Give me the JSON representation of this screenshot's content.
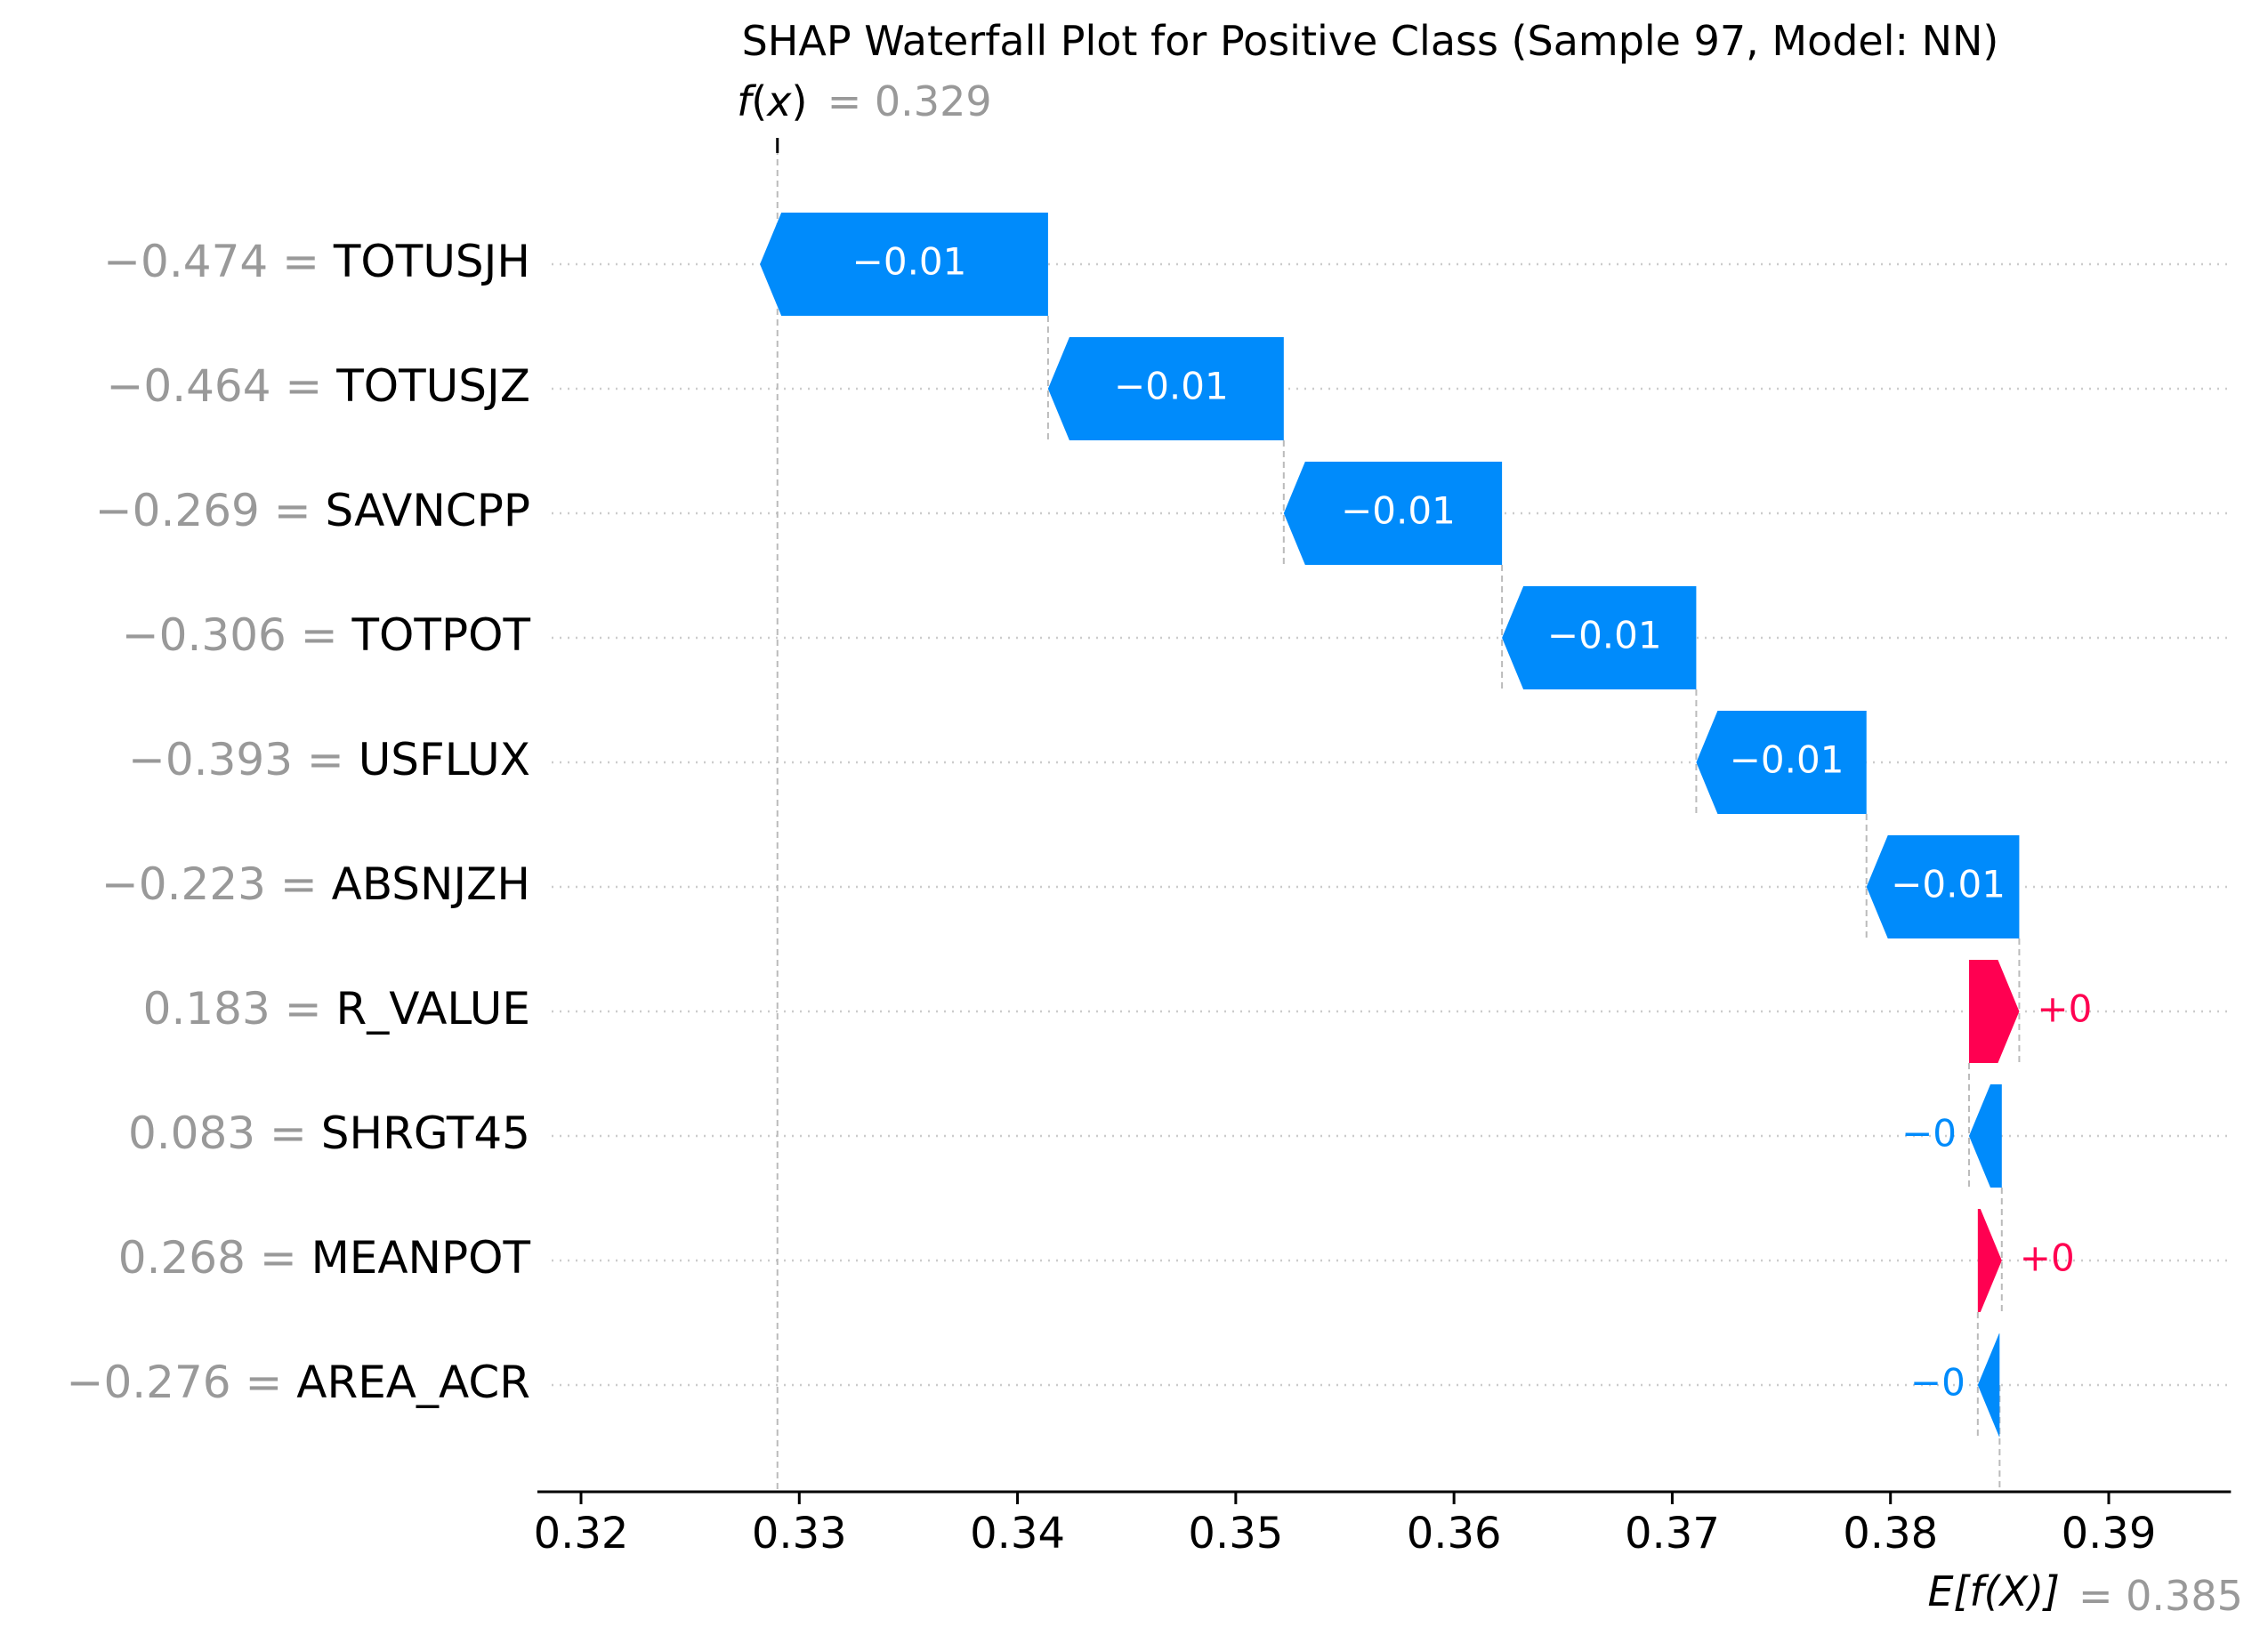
{
  "chart_data": {
    "type": "waterfall",
    "title": "SHAP Waterfall Plot for Positive Class (Sample 97, Model: NN)",
    "fx": {
      "label_fn": "f",
      "label_var": "x",
      "value_text": "= 0.329",
      "value": 0.329
    },
    "ex": {
      "label": "E[f(X)]",
      "value_text": "= 0.385",
      "value": 0.385
    },
    "xlim": [
      0.318,
      0.3956
    ],
    "xticks": [
      0.32,
      0.33,
      0.34,
      0.35,
      0.36,
      0.37,
      0.38,
      0.39
    ],
    "xtick_labels": [
      "0.32",
      "0.33",
      "0.34",
      "0.35",
      "0.36",
      "0.37",
      "0.38",
      "0.39"
    ],
    "features": [
      {
        "value": "−0.474 =",
        "name": "TOTUSJH",
        "shap": -0.0132,
        "label": "−0.01"
      },
      {
        "value": "−0.464 =",
        "name": "TOTUSJZ",
        "shap": -0.0108,
        "label": "−0.01"
      },
      {
        "value": "−0.269 =",
        "name": "SAVNCPP",
        "shap": -0.01,
        "label": "−0.01"
      },
      {
        "value": "−0.306 =",
        "name": "TOTPOT",
        "shap": -0.0089,
        "label": "−0.01"
      },
      {
        "value": "−0.393 =",
        "name": "USFLUX",
        "shap": -0.0078,
        "label": "−0.01"
      },
      {
        "value": "−0.223 =",
        "name": "ABSNJZH",
        "shap": -0.007,
        "label": "−0.01"
      },
      {
        "value": "0.183 =",
        "name": "R_VALUE",
        "shap": 0.0023,
        "label": "+0"
      },
      {
        "value": "0.083 =",
        "name": "SHRGT45",
        "shap": -0.0015,
        "label": "−0"
      },
      {
        "value": "0.268 =",
        "name": "MEANPOT",
        "shap": 0.0011,
        "label": "+0"
      },
      {
        "value": "−0.276 =",
        "name": "AREA_ACR",
        "shap": -0.001,
        "label": "−0"
      }
    ],
    "colors": {
      "negative": "#008BFB",
      "positive": "#FF0051",
      "gray": "#999999",
      "text": "#000000"
    }
  }
}
